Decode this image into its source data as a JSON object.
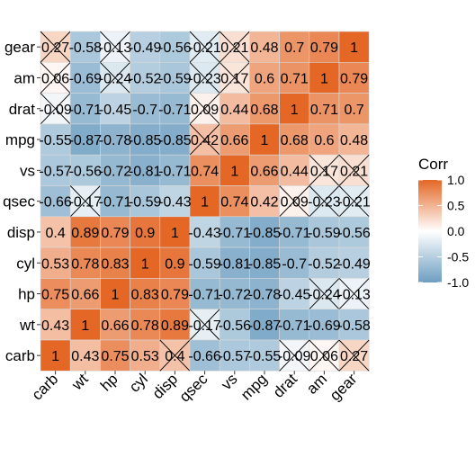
{
  "chart_data": {
    "type": "heatmap",
    "x_categories": [
      "carb",
      "wt",
      "hp",
      "cyl",
      "disp",
      "qsec",
      "vs",
      "mpg",
      "drat",
      "am",
      "gear"
    ],
    "y_categories": [
      "gear",
      "am",
      "drat",
      "mpg",
      "vs",
      "qsec",
      "disp",
      "cyl",
      "hp",
      "wt",
      "carb"
    ],
    "value_labels": [
      [
        "0.27",
        "-0.58",
        "-0.13",
        "-0.49",
        "-0.56",
        "-0.21",
        "0.21",
        "0.48",
        "0.7",
        "0.79",
        "1"
      ],
      [
        "0.06",
        "-0.69",
        "-0.24",
        "-0.52",
        "-0.59",
        "-0.23",
        "0.17",
        "0.6",
        "0.71",
        "1",
        "0.79"
      ],
      [
        "-0.09",
        "-0.71",
        "-0.45",
        "-0.7",
        "-0.71",
        "0.09",
        "0.44",
        "0.68",
        "1",
        "0.71",
        "0.7"
      ],
      [
        "-0.55",
        "-0.87",
        "-0.78",
        "-0.85",
        "-0.85",
        "0.42",
        "0.66",
        "1",
        "0.68",
        "0.6",
        "0.48"
      ],
      [
        "-0.57",
        "-0.56",
        "-0.72",
        "-0.81",
        "-0.71",
        "0.74",
        "1",
        "0.66",
        "0.44",
        "0.17",
        "0.21"
      ],
      [
        "-0.66",
        "-0.17",
        "-0.71",
        "-0.59",
        "-0.43",
        "1",
        "0.74",
        "0.42",
        "0.09",
        "-0.23",
        "-0.21"
      ],
      [
        "0.4",
        "0.89",
        "0.79",
        "0.9",
        "1",
        "-0.43",
        "-0.71",
        "-0.85",
        "-0.71",
        "-0.59",
        "-0.56"
      ],
      [
        "0.53",
        "0.78",
        "0.83",
        "1",
        "0.9",
        "-0.59",
        "-0.81",
        "-0.85",
        "-0.7",
        "-0.52",
        "-0.49"
      ],
      [
        "0.75",
        "0.66",
        "1",
        "0.83",
        "0.79",
        "-0.71",
        "-0.72",
        "-0.78",
        "-0.45",
        "-0.24",
        "-0.13"
      ],
      [
        "0.43",
        "1",
        "0.66",
        "0.78",
        "0.89",
        "-0.17",
        "-0.56",
        "-0.87",
        "-0.71",
        "-0.69",
        "-0.58"
      ],
      [
        "1",
        "0.43",
        "0.75",
        "0.53",
        "0.4",
        "-0.66",
        "-0.57",
        "-0.55",
        "-0.09",
        "0.06",
        "0.27"
      ]
    ],
    "crossed_cells": [
      [
        0,
        0
      ],
      [
        0,
        2
      ],
      [
        0,
        5
      ],
      [
        0,
        6
      ],
      [
        1,
        0
      ],
      [
        1,
        2
      ],
      [
        1,
        5
      ],
      [
        1,
        6
      ],
      [
        2,
        0
      ],
      [
        2,
        5
      ],
      [
        3,
        5
      ],
      [
        4,
        9
      ],
      [
        4,
        10
      ],
      [
        5,
        1
      ],
      [
        5,
        8
      ],
      [
        5,
        9
      ],
      [
        5,
        10
      ],
      [
        8,
        9
      ],
      [
        8,
        10
      ],
      [
        9,
        5
      ],
      [
        10,
        4
      ],
      [
        10,
        8
      ],
      [
        10,
        9
      ],
      [
        10,
        10
      ]
    ],
    "legend": {
      "title": "Corr",
      "ticks": [
        "1.0",
        "0.5",
        "0.0",
        "-0.5",
        "-1.0"
      ],
      "tick_values": [
        1,
        0.5,
        0,
        -0.5,
        -1
      ]
    },
    "value_range": [
      -1,
      1
    ],
    "colors": {
      "low": "#6D9EC1",
      "mid": "#FFFFFF",
      "high": "#E46726",
      "cross": "#000000",
      "grid": "#d9d9d9"
    },
    "grid": false,
    "legend_position": "right"
  }
}
